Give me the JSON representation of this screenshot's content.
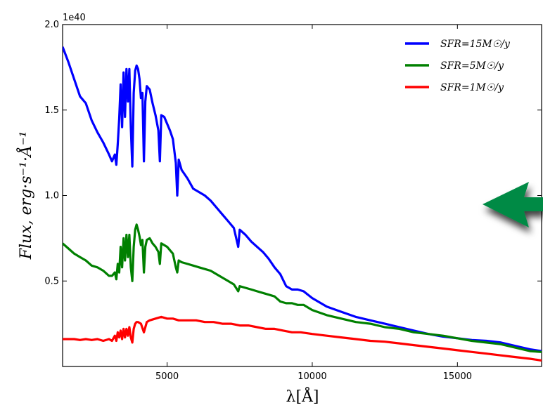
{
  "chart_data": {
    "type": "line",
    "title": "",
    "xlabel": "λ[Å]",
    "ylabel": "Flux, erg·s⁻¹·Å⁻¹",
    "y_offset_label": "1e40",
    "xlim": [
      1400,
      17900
    ],
    "ylim": [
      0.0,
      2.0
    ],
    "ylim_scale": "1e40",
    "x_ticks": [
      5000,
      10000,
      15000
    ],
    "x_tick_labels": [
      "5000",
      "10000",
      "15000"
    ],
    "y_ticks": [
      0.5,
      1.0,
      1.5,
      2.0
    ],
    "y_tick_labels": [
      "0.5",
      "1.0",
      "1.5",
      "2.0"
    ],
    "grid": false,
    "legend_position": "top-right",
    "series": [
      {
        "name": "SFR=15M☉/y",
        "color": "#0000ff",
        "points": [
          [
            1400,
            1.87
          ],
          [
            1600,
            1.78
          ],
          [
            1800,
            1.68
          ],
          [
            2000,
            1.58
          ],
          [
            2200,
            1.54
          ],
          [
            2400,
            1.44
          ],
          [
            2600,
            1.37
          ],
          [
            2800,
            1.31
          ],
          [
            3000,
            1.24
          ],
          [
            3100,
            1.2
          ],
          [
            3200,
            1.24
          ],
          [
            3250,
            1.18
          ],
          [
            3300,
            1.3
          ],
          [
            3350,
            1.45
          ],
          [
            3400,
            1.65
          ],
          [
            3450,
            1.4
          ],
          [
            3500,
            1.72
          ],
          [
            3550,
            1.46
          ],
          [
            3600,
            1.74
          ],
          [
            3650,
            1.55
          ],
          [
            3700,
            1.74
          ],
          [
            3750,
            1.4
          ],
          [
            3800,
            1.17
          ],
          [
            3850,
            1.6
          ],
          [
            3900,
            1.73
          ],
          [
            3950,
            1.76
          ],
          [
            4000,
            1.74
          ],
          [
            4050,
            1.68
          ],
          [
            4100,
            1.57
          ],
          [
            4150,
            1.6
          ],
          [
            4200,
            1.2
          ],
          [
            4250,
            1.55
          ],
          [
            4300,
            1.64
          ],
          [
            4400,
            1.62
          ],
          [
            4500,
            1.54
          ],
          [
            4600,
            1.47
          ],
          [
            4700,
            1.38
          ],
          [
            4750,
            1.2
          ],
          [
            4800,
            1.47
          ],
          [
            4900,
            1.46
          ],
          [
            5000,
            1.42
          ],
          [
            5100,
            1.38
          ],
          [
            5200,
            1.33
          ],
          [
            5300,
            1.19
          ],
          [
            5350,
            1.0
          ],
          [
            5400,
            1.21
          ],
          [
            5500,
            1.15
          ],
          [
            5700,
            1.1
          ],
          [
            5900,
            1.04
          ],
          [
            6100,
            1.02
          ],
          [
            6300,
            1.0
          ],
          [
            6500,
            0.97
          ],
          [
            6700,
            0.93
          ],
          [
            6900,
            0.89
          ],
          [
            7100,
            0.85
          ],
          [
            7300,
            0.81
          ],
          [
            7450,
            0.7
          ],
          [
            7500,
            0.8
          ],
          [
            7700,
            0.77
          ],
          [
            7900,
            0.73
          ],
          [
            8100,
            0.7
          ],
          [
            8300,
            0.67
          ],
          [
            8500,
            0.63
          ],
          [
            8700,
            0.58
          ],
          [
            8900,
            0.54
          ],
          [
            9100,
            0.47
          ],
          [
            9300,
            0.45
          ],
          [
            9500,
            0.45
          ],
          [
            9700,
            0.44
          ],
          [
            10000,
            0.4
          ],
          [
            10500,
            0.35
          ],
          [
            11000,
            0.32
          ],
          [
            11500,
            0.29
          ],
          [
            12000,
            0.27
          ],
          [
            12500,
            0.25
          ],
          [
            13000,
            0.23
          ],
          [
            13500,
            0.21
          ],
          [
            14000,
            0.19
          ],
          [
            14500,
            0.175
          ],
          [
            15000,
            0.165
          ],
          [
            15500,
            0.155
          ],
          [
            16000,
            0.15
          ],
          [
            16500,
            0.14
          ],
          [
            17000,
            0.12
          ],
          [
            17500,
            0.1
          ],
          [
            17900,
            0.09
          ]
        ]
      },
      {
        "name": "SFR=5M☉/y",
        "color": "#008000",
        "points": [
          [
            1400,
            0.72
          ],
          [
            1600,
            0.69
          ],
          [
            1800,
            0.66
          ],
          [
            2000,
            0.64
          ],
          [
            2200,
            0.62
          ],
          [
            2400,
            0.59
          ],
          [
            2600,
            0.58
          ],
          [
            2800,
            0.56
          ],
          [
            3000,
            0.53
          ],
          [
            3100,
            0.53
          ],
          [
            3200,
            0.55
          ],
          [
            3250,
            0.51
          ],
          [
            3300,
            0.6
          ],
          [
            3350,
            0.55
          ],
          [
            3400,
            0.7
          ],
          [
            3450,
            0.58
          ],
          [
            3500,
            0.75
          ],
          [
            3550,
            0.62
          ],
          [
            3600,
            0.77
          ],
          [
            3650,
            0.64
          ],
          [
            3700,
            0.77
          ],
          [
            3750,
            0.58
          ],
          [
            3800,
            0.5
          ],
          [
            3850,
            0.7
          ],
          [
            3900,
            0.8
          ],
          [
            3950,
            0.83
          ],
          [
            4000,
            0.8
          ],
          [
            4050,
            0.76
          ],
          [
            4100,
            0.71
          ],
          [
            4150,
            0.74
          ],
          [
            4200,
            0.55
          ],
          [
            4250,
            0.7
          ],
          [
            4300,
            0.74
          ],
          [
            4400,
            0.75
          ],
          [
            4500,
            0.72
          ],
          [
            4600,
            0.7
          ],
          [
            4700,
            0.67
          ],
          [
            4750,
            0.6
          ],
          [
            4800,
            0.72
          ],
          [
            4900,
            0.71
          ],
          [
            5000,
            0.7
          ],
          [
            5100,
            0.68
          ],
          [
            5200,
            0.66
          ],
          [
            5300,
            0.58
          ],
          [
            5350,
            0.55
          ],
          [
            5400,
            0.62
          ],
          [
            5500,
            0.61
          ],
          [
            5700,
            0.6
          ],
          [
            5900,
            0.59
          ],
          [
            6100,
            0.58
          ],
          [
            6300,
            0.57
          ],
          [
            6500,
            0.56
          ],
          [
            6700,
            0.54
          ],
          [
            6900,
            0.52
          ],
          [
            7100,
            0.5
          ],
          [
            7300,
            0.48
          ],
          [
            7450,
            0.44
          ],
          [
            7500,
            0.47
          ],
          [
            7700,
            0.46
          ],
          [
            7900,
            0.45
          ],
          [
            8100,
            0.44
          ],
          [
            8300,
            0.43
          ],
          [
            8500,
            0.42
          ],
          [
            8700,
            0.41
          ],
          [
            8900,
            0.38
          ],
          [
            9100,
            0.37
          ],
          [
            9300,
            0.37
          ],
          [
            9500,
            0.36
          ],
          [
            9700,
            0.36
          ],
          [
            10000,
            0.33
          ],
          [
            10500,
            0.3
          ],
          [
            11000,
            0.28
          ],
          [
            11500,
            0.26
          ],
          [
            12000,
            0.25
          ],
          [
            12500,
            0.23
          ],
          [
            13000,
            0.22
          ],
          [
            13500,
            0.2
          ],
          [
            14000,
            0.19
          ],
          [
            14500,
            0.18
          ],
          [
            15000,
            0.165
          ],
          [
            15500,
            0.15
          ],
          [
            16000,
            0.14
          ],
          [
            16500,
            0.13
          ],
          [
            17000,
            0.11
          ],
          [
            17500,
            0.09
          ],
          [
            17900,
            0.085
          ]
        ]
      },
      {
        "name": "SFR=1M☉/y",
        "color": "#ff0000",
        "points": [
          [
            1400,
            0.16
          ],
          [
            1600,
            0.16
          ],
          [
            1800,
            0.16
          ],
          [
            2000,
            0.155
          ],
          [
            2200,
            0.16
          ],
          [
            2400,
            0.155
          ],
          [
            2600,
            0.16
          ],
          [
            2800,
            0.15
          ],
          [
            3000,
            0.16
          ],
          [
            3100,
            0.15
          ],
          [
            3200,
            0.18
          ],
          [
            3250,
            0.15
          ],
          [
            3300,
            0.2
          ],
          [
            3350,
            0.17
          ],
          [
            3400,
            0.21
          ],
          [
            3450,
            0.16
          ],
          [
            3500,
            0.22
          ],
          [
            3550,
            0.17
          ],
          [
            3600,
            0.22
          ],
          [
            3650,
            0.18
          ],
          [
            3700,
            0.23
          ],
          [
            3750,
            0.17
          ],
          [
            3800,
            0.14
          ],
          [
            3850,
            0.22
          ],
          [
            3900,
            0.25
          ],
          [
            3950,
            0.26
          ],
          [
            4000,
            0.26
          ],
          [
            4100,
            0.25
          ],
          [
            4200,
            0.2
          ],
          [
            4300,
            0.26
          ],
          [
            4400,
            0.27
          ],
          [
            4600,
            0.28
          ],
          [
            4800,
            0.29
          ],
          [
            5000,
            0.28
          ],
          [
            5200,
            0.28
          ],
          [
            5400,
            0.27
          ],
          [
            5700,
            0.27
          ],
          [
            6000,
            0.27
          ],
          [
            6300,
            0.26
          ],
          [
            6600,
            0.26
          ],
          [
            6900,
            0.25
          ],
          [
            7200,
            0.25
          ],
          [
            7500,
            0.24
          ],
          [
            7800,
            0.24
          ],
          [
            8100,
            0.23
          ],
          [
            8400,
            0.22
          ],
          [
            8700,
            0.22
          ],
          [
            9000,
            0.21
          ],
          [
            9300,
            0.2
          ],
          [
            9600,
            0.2
          ],
          [
            10000,
            0.19
          ],
          [
            10500,
            0.18
          ],
          [
            11000,
            0.17
          ],
          [
            11500,
            0.16
          ],
          [
            12000,
            0.15
          ],
          [
            12500,
            0.145
          ],
          [
            13000,
            0.135
          ],
          [
            13500,
            0.125
          ],
          [
            14000,
            0.115
          ],
          [
            14500,
            0.105
          ],
          [
            15000,
            0.095
          ],
          [
            15500,
            0.085
          ],
          [
            16000,
            0.075
          ],
          [
            16500,
            0.065
          ],
          [
            17000,
            0.055
          ],
          [
            17500,
            0.045
          ],
          [
            17900,
            0.035
          ]
        ]
      }
    ]
  },
  "annotation": {
    "arrow_color": "#008a45",
    "arrow_direction": "left"
  }
}
